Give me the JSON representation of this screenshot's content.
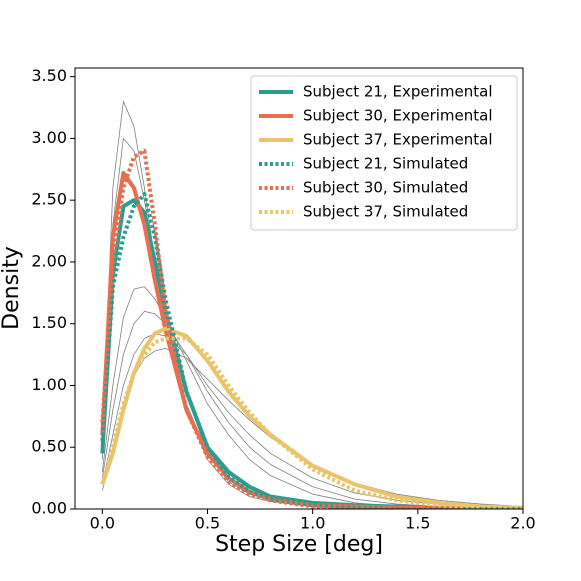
{
  "chart_data": {
    "type": "line",
    "xlabel": "Step Size [deg]",
    "ylabel": "Density",
    "x": [
      0,
      0.05,
      0.1,
      0.15,
      0.2,
      0.25,
      0.3,
      0.4,
      0.5,
      0.6,
      0.7,
      0.8,
      1.0,
      1.2,
      1.4,
      1.6,
      1.8,
      2.0
    ],
    "xlim": [
      -0.13,
      2.0
    ],
    "xticks": [
      {
        "value": 0,
        "label": "0.0"
      },
      {
        "value": 0.5,
        "label": "0.5"
      },
      {
        "value": 1,
        "label": "1.0"
      },
      {
        "value": 1.5,
        "label": "1.5"
      },
      {
        "value": 2,
        "label": "2.0"
      }
    ],
    "ylim": [
      0,
      3.57
    ],
    "yticks": [
      {
        "value": 0,
        "label": "0.00"
      },
      {
        "value": 0.5,
        "label": "0.50"
      },
      {
        "value": 1,
        "label": "1.00"
      },
      {
        "value": 1.5,
        "label": "1.50"
      },
      {
        "value": 2,
        "label": "2.00"
      },
      {
        "value": 2.5,
        "label": "2.50"
      },
      {
        "value": 3,
        "label": "3.00"
      },
      {
        "value": 3.5,
        "label": "3.50"
      }
    ],
    "legend": "upper right",
    "series": [
      {
        "color": "#808080",
        "values": [
          0.5,
          2.6,
          3.3,
          3.1,
          2.6,
          2.0,
          1.5,
          0.8,
          0.4,
          0.2,
          0.1,
          0.06,
          0.02,
          0.01,
          0.0,
          0.0,
          0.0,
          0.0
        ]
      },
      {
        "color": "#808080",
        "values": [
          0.4,
          2.3,
          3.0,
          2.9,
          2.5,
          2.0,
          1.55,
          0.85,
          0.45,
          0.22,
          0.12,
          0.07,
          0.03,
          0.01,
          0.0,
          0.0,
          0.0,
          0.0
        ]
      },
      {
        "color": "#808080",
        "values": [
          0.3,
          1.0,
          1.55,
          1.78,
          1.8,
          1.7,
          1.55,
          1.2,
          0.85,
          0.6,
          0.4,
          0.27,
          0.12,
          0.05,
          0.02,
          0.01,
          0.0,
          0.0
        ]
      },
      {
        "color": "#808080",
        "values": [
          0.25,
          0.8,
          1.25,
          1.5,
          1.6,
          1.58,
          1.5,
          1.25,
          0.95,
          0.7,
          0.5,
          0.36,
          0.18,
          0.08,
          0.04,
          0.02,
          0.01,
          0.0
        ]
      },
      {
        "color": "#808080",
        "values": [
          0.15,
          0.5,
          0.85,
          1.08,
          1.22,
          1.28,
          1.3,
          1.22,
          1.05,
          0.88,
          0.72,
          0.58,
          0.36,
          0.21,
          0.12,
          0.07,
          0.04,
          0.02
        ]
      },
      {
        "color": "#808080",
        "values": [
          0.2,
          0.6,
          1.0,
          1.25,
          1.38,
          1.42,
          1.4,
          1.25,
          1.0,
          0.78,
          0.6,
          0.45,
          0.25,
          0.13,
          0.07,
          0.04,
          0.02,
          0.01
        ]
      },
      {
        "name": "Subject 21, Experimental",
        "color": "#2a9d8f",
        "values": [
          0.45,
          1.9,
          2.45,
          2.5,
          2.4,
          2.0,
          1.6,
          0.95,
          0.5,
          0.3,
          0.18,
          0.1,
          0.05,
          0.03,
          0.02,
          0.01,
          0.01,
          0.0
        ]
      },
      {
        "name": "Subject 30, Experimental",
        "color": "#e76f51",
        "values": [
          0.6,
          2.2,
          2.72,
          2.6,
          2.3,
          1.85,
          1.45,
          0.8,
          0.45,
          0.25,
          0.14,
          0.08,
          0.03,
          0.02,
          0.01,
          0.01,
          0.0,
          0.0
        ]
      },
      {
        "name": "Subject 37, Experimental",
        "color": "#e9c46a",
        "values": [
          0.2,
          0.45,
          0.8,
          1.1,
          1.3,
          1.42,
          1.46,
          1.4,
          1.2,
          0.95,
          0.75,
          0.6,
          0.35,
          0.2,
          0.1,
          0.05,
          0.02,
          0.01
        ]
      },
      {
        "name": "Subject 21, Simulated",
        "color": "#2a9d8f",
        "dashed": true,
        "values": [
          0.55,
          1.8,
          2.2,
          2.45,
          2.55,
          2.2,
          1.7,
          0.95,
          0.5,
          0.26,
          0.14,
          0.08,
          0.03,
          0.01,
          0.0,
          0.0,
          0.0,
          0.0
        ]
      },
      {
        "name": "Subject 30, Simulated",
        "color": "#e76f51",
        "dashed": true,
        "values": [
          0.7,
          2.0,
          2.6,
          2.85,
          2.9,
          2.3,
          1.6,
          0.8,
          0.42,
          0.22,
          0.12,
          0.07,
          0.02,
          0.01,
          0.0,
          0.0,
          0.0,
          0.0
        ]
      },
      {
        "name": "Subject 37, Simulated",
        "color": "#e9c46a",
        "dashed": true,
        "values": [
          0.2,
          0.5,
          0.85,
          1.1,
          1.25,
          1.35,
          1.38,
          1.38,
          1.25,
          1.0,
          0.78,
          0.6,
          0.32,
          0.15,
          0.07,
          0.03,
          0.01,
          0.0
        ]
      }
    ]
  }
}
